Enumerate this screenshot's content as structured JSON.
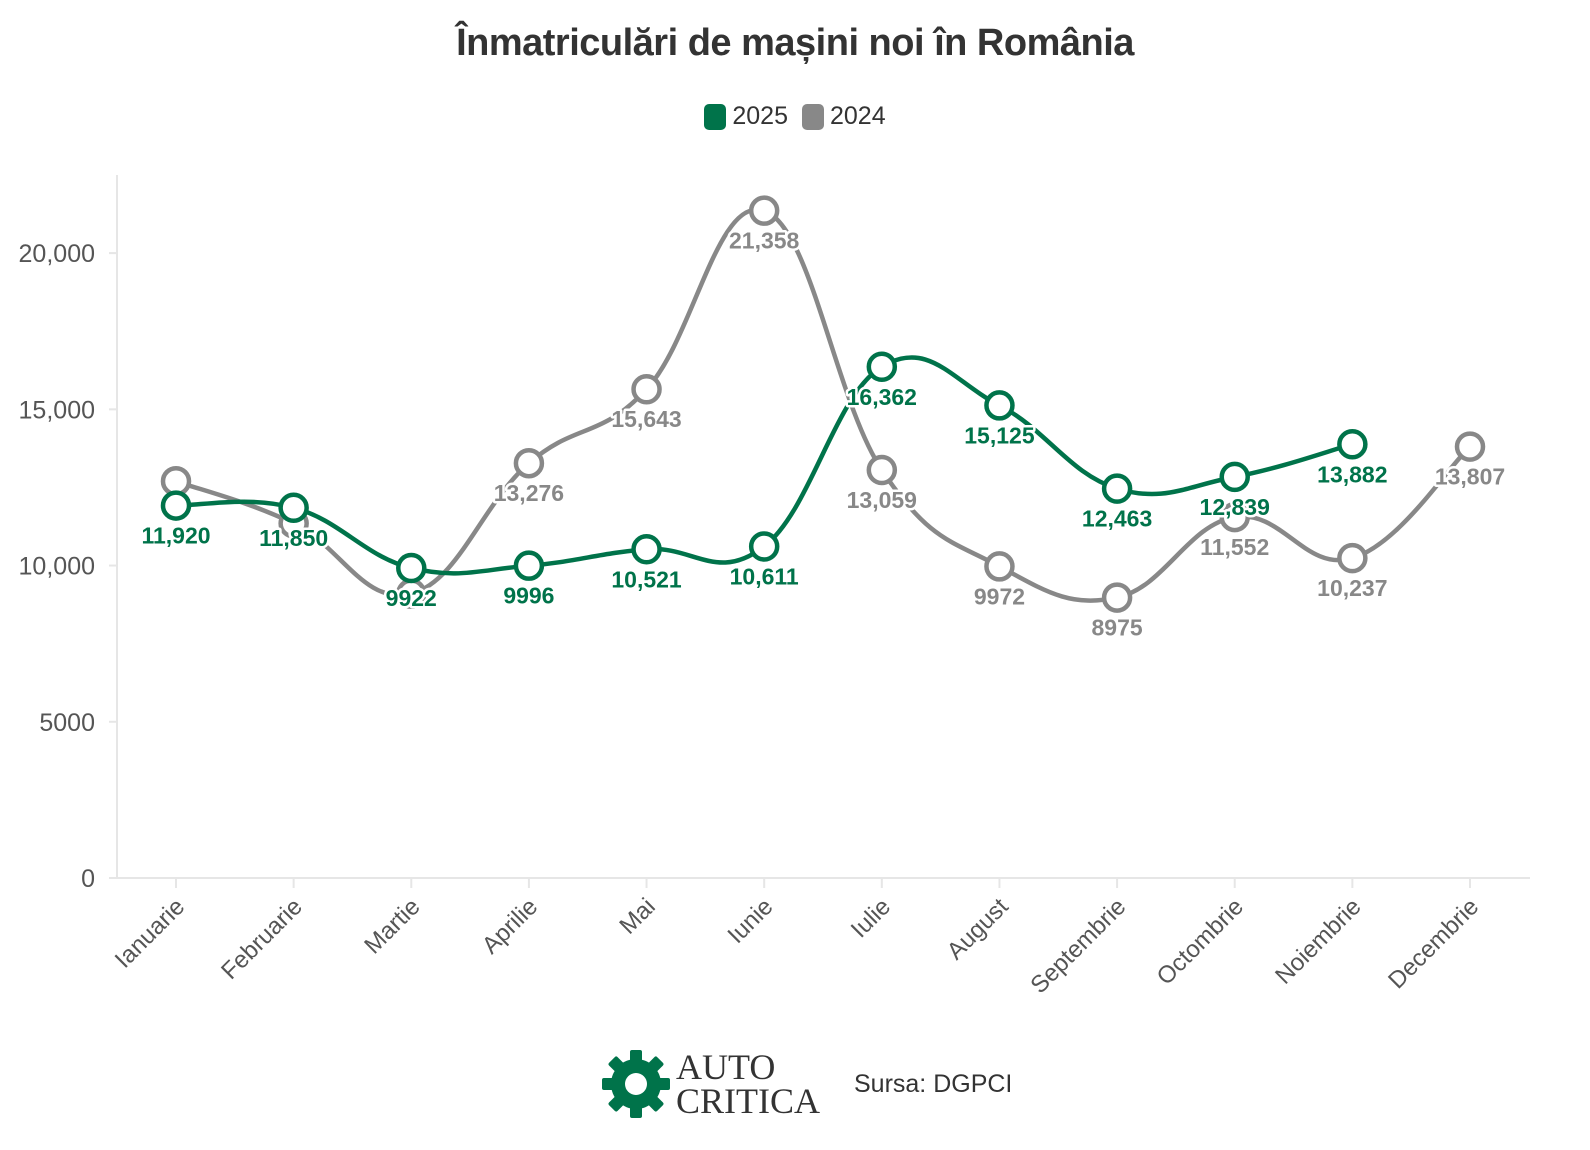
{
  "title": "Înmatriculări de mașini noi în România",
  "source": "Sursa: DGPCI",
  "logo": {
    "line1": "AUTO",
    "line2": "CRITICA"
  },
  "colors": {
    "series2025": "#00734a",
    "series2024": "#888888",
    "axis": "#e6e6e6",
    "text": "#333333"
  },
  "chart_data": {
    "type": "line",
    "title": "Înmatriculări de mașini noi în România",
    "xlabel": "",
    "ylabel": "",
    "ylim": [
      0,
      22500
    ],
    "yticks": [
      0,
      5000,
      10000,
      15000,
      20000
    ],
    "ytick_labels": [
      "0",
      "5000",
      "10,000",
      "15,000",
      "20,000"
    ],
    "categories": [
      "Ianuarie",
      "Februarie",
      "Martie",
      "Aprilie",
      "Mai",
      "Iunie",
      "Iulie",
      "August",
      "Septembrie",
      "Octombrie",
      "Noiembrie",
      "Decembrie"
    ],
    "legend_position": "top-center",
    "series": [
      {
        "name": "2025",
        "color": "#00734a",
        "values": [
          11920,
          11850,
          9922,
          9996,
          10521,
          10611,
          16362,
          15125,
          12463,
          12839,
          13882,
          null
        ],
        "labels": [
          "11,920",
          "11,850",
          "9922",
          "9996",
          "10,521",
          "10,611",
          "16,362",
          "15,125",
          "12,463",
          "12,839",
          "13,882",
          ""
        ]
      },
      {
        "name": "2024",
        "color": "#888888",
        "values": [
          12700,
          11350,
          9100,
          13276,
          15643,
          21358,
          13059,
          9972,
          8975,
          11552,
          10237,
          13807
        ],
        "labels": [
          "",
          "",
          "",
          "13,276",
          "15,643",
          "21,358",
          "13,059",
          "9972",
          "8975",
          "11,552",
          "10,237",
          "13,807"
        ]
      }
    ]
  }
}
